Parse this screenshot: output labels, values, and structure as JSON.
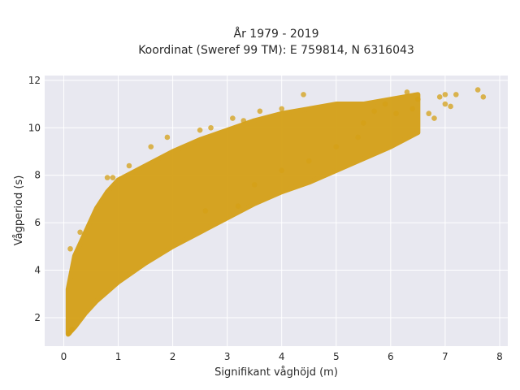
{
  "chart_data": {
    "type": "scatter",
    "title_line1": "År 1979 - 2019",
    "title_line2": "Koordinat (Sweref 99 TM): E 759814, N 6316043",
    "xlabel": "Signifikant våghöjd (m)",
    "ylabel": "Vågperiod (s)",
    "xlim": [
      -0.35,
      8.15
    ],
    "ylim": [
      0.8,
      12.2
    ],
    "xticks": [
      0,
      1,
      2,
      3,
      4,
      5,
      6,
      7,
      8
    ],
    "yticks": [
      2,
      4,
      6,
      8,
      10,
      12
    ],
    "grid": true,
    "marker_color": "#D4A017",
    "background_color": "#E8E8F0",
    "envelope": {
      "h": [
        0.08,
        0.2,
        0.4,
        0.6,
        0.8,
        1.0,
        1.5,
        2.0,
        2.5,
        3.0,
        3.5,
        4.0,
        4.5,
        5.0,
        5.5,
        6.0,
        6.5
      ],
      "t_min": [
        1.3,
        1.6,
        2.2,
        2.7,
        3.1,
        3.5,
        4.3,
        5.0,
        5.6,
        6.2,
        6.8,
        7.3,
        7.7,
        8.2,
        8.7,
        9.2,
        9.8
      ],
      "t_max": [
        3.2,
        4.6,
        5.6,
        6.6,
        7.3,
        7.8,
        8.4,
        9.0,
        9.5,
        9.9,
        10.3,
        10.6,
        10.8,
        11.0,
        11.0,
        11.2,
        11.4
      ]
    },
    "points": [
      {
        "x": 4.4,
        "y": 11.4
      },
      {
        "x": 5.9,
        "y": 11.0
      },
      {
        "x": 6.3,
        "y": 11.5
      },
      {
        "x": 6.5,
        "y": 11.2
      },
      {
        "x": 6.7,
        "y": 10.6
      },
      {
        "x": 6.9,
        "y": 11.3
      },
      {
        "x": 7.0,
        "y": 11.4
      },
      {
        "x": 7.0,
        "y": 11.0
      },
      {
        "x": 7.1,
        "y": 10.9
      },
      {
        "x": 7.2,
        "y": 11.4
      },
      {
        "x": 7.6,
        "y": 11.6
      },
      {
        "x": 7.7,
        "y": 11.3
      },
      {
        "x": 6.8,
        "y": 10.4
      },
      {
        "x": 6.4,
        "y": 10.8
      },
      {
        "x": 6.1,
        "y": 10.6
      },
      {
        "x": 5.7,
        "y": 10.7
      },
      {
        "x": 5.5,
        "y": 10.2
      },
      {
        "x": 4.0,
        "y": 10.8
      },
      {
        "x": 3.6,
        "y": 10.7
      },
      {
        "x": 3.3,
        "y": 10.3
      },
      {
        "x": 3.1,
        "y": 10.4
      },
      {
        "x": 2.7,
        "y": 10.0
      },
      {
        "x": 2.5,
        "y": 9.9
      },
      {
        "x": 1.9,
        "y": 9.6
      },
      {
        "x": 1.6,
        "y": 9.2
      },
      {
        "x": 1.2,
        "y": 8.4
      },
      {
        "x": 0.9,
        "y": 7.9
      },
      {
        "x": 0.8,
        "y": 7.9
      },
      {
        "x": 2.6,
        "y": 6.5
      },
      {
        "x": 3.2,
        "y": 6.7
      },
      {
        "x": 3.5,
        "y": 7.6
      },
      {
        "x": 4.0,
        "y": 8.2
      },
      {
        "x": 4.5,
        "y": 8.6
      },
      {
        "x": 5.0,
        "y": 9.2
      },
      {
        "x": 5.4,
        "y": 9.6
      },
      {
        "x": 0.1,
        "y": 1.35
      },
      {
        "x": 0.15,
        "y": 1.5
      },
      {
        "x": 0.12,
        "y": 4.9
      },
      {
        "x": 0.3,
        "y": 5.6
      }
    ]
  }
}
